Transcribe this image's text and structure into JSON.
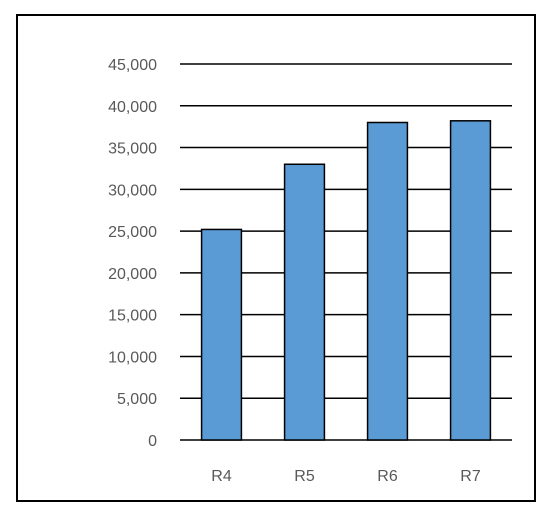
{
  "chart_data": {
    "type": "bar",
    "title": "",
    "xlabel": "",
    "ylabel": "",
    "categories": [
      "R4",
      "R5",
      "R6",
      "R7"
    ],
    "values": [
      25200,
      33000,
      38000,
      38200
    ],
    "ylim": [
      0,
      45000
    ],
    "yticks": [
      0,
      5000,
      10000,
      15000,
      20000,
      25000,
      30000,
      35000,
      40000,
      45000
    ],
    "ytick_labels": [
      "0",
      "5,000",
      "10,000",
      "15,000",
      "20,000",
      "25,000",
      "30,000",
      "35,000",
      "40,000",
      "45,000"
    ],
    "grid": true,
    "legend": "none",
    "bar_color": "#5B9BD5",
    "bar_outline_color": "#000000",
    "gridline_color": "#000000",
    "tick_label_color": "#595959"
  }
}
